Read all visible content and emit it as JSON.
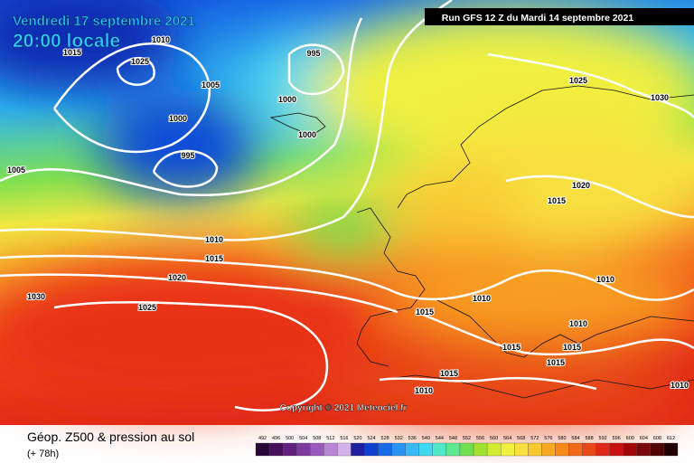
{
  "header": {
    "date": "Vendredi 17 septembre 2021",
    "time": "20:00 locale",
    "run": "Run GFS 12 Z du Mardi 14 septembre 2021"
  },
  "isobar_labels": [
    "1010",
    "1015",
    "1025",
    "995",
    "1005",
    "1000",
    "1000",
    "1000",
    "995",
    "1005",
    "1025",
    "1030",
    "1020",
    "1015",
    "1010",
    "1015",
    "1020",
    "1030",
    "1025",
    "1010",
    "1010",
    "1015",
    "1010",
    "1015",
    "1015",
    "1015",
    "1015",
    "1010",
    "1010"
  ],
  "copyright": "Copyright © 2021 Meteociel.fr",
  "legend": {
    "title": "Géop. Z500 & pression au sol",
    "lead": "(+ 78h)",
    "labels": [
      "492",
      "496",
      "500",
      "504",
      "508",
      "512",
      "516",
      "520",
      "524",
      "528",
      "532",
      "536",
      "540",
      "544",
      "548",
      "552",
      "556",
      "560",
      "564",
      "568",
      "572",
      "576",
      "580",
      "584",
      "588",
      "592",
      "596",
      "600",
      "604",
      "608",
      "612"
    ],
    "colors": [
      "#2a0636",
      "#46105a",
      "#62207e",
      "#7e3a9e",
      "#9a5abc",
      "#b884d4",
      "#d4b0ea",
      "#2020a0",
      "#1040d0",
      "#1a6ae8",
      "#2a92f0",
      "#38b8f4",
      "#40d8f0",
      "#50e8c8",
      "#60e890",
      "#70e050",
      "#a0e030",
      "#d0ec30",
      "#f0f040",
      "#f8e040",
      "#f8c830",
      "#f8a820",
      "#f88818",
      "#f06818",
      "#e84818",
      "#e02818",
      "#c81010",
      "#a00808",
      "#780808",
      "#500404",
      "#200000"
    ]
  }
}
